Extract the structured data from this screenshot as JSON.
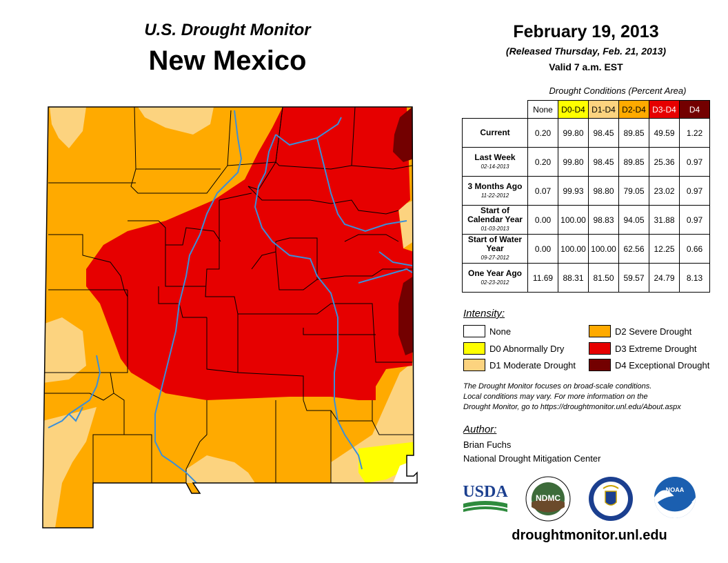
{
  "header": {
    "title_line1": "U.S. Drought Monitor",
    "title_line2": "New Mexico",
    "date": "February 19, 2013",
    "released": "(Released Thursday, Feb. 21, 2013)",
    "valid": "Valid 7 a.m. EST"
  },
  "table": {
    "caption": "Drought Conditions (Percent Area)",
    "columns": [
      {
        "label": "None",
        "color": "#ffffff",
        "text_color": "#000000"
      },
      {
        "label": "D0-D4",
        "color": "#ffff00",
        "text_color": "#000000"
      },
      {
        "label": "D1-D4",
        "color": "#fcd37f",
        "text_color": "#000000"
      },
      {
        "label": "D2-D4",
        "color": "#ffaa00",
        "text_color": "#000000"
      },
      {
        "label": "D3-D4",
        "color": "#e60000",
        "text_color": "#ffffff"
      },
      {
        "label": "D4",
        "color": "#730000",
        "text_color": "#ffffff"
      }
    ],
    "rows": [
      {
        "label": "Current",
        "date": "",
        "values": [
          "0.20",
          "99.80",
          "98.45",
          "89.85",
          "49.59",
          "1.22"
        ]
      },
      {
        "label": "Last Week",
        "date": "02-14-2013",
        "values": [
          "0.20",
          "99.80",
          "98.45",
          "89.85",
          "25.36",
          "0.97"
        ]
      },
      {
        "label": "3 Months Ago",
        "date": "11-22-2012",
        "values": [
          "0.07",
          "99.93",
          "98.80",
          "79.05",
          "23.02",
          "0.97"
        ]
      },
      {
        "label": "Start of Calendar Year",
        "date": "01-03-2013",
        "values": [
          "0.00",
          "100.00",
          "98.83",
          "94.05",
          "31.88",
          "0.97"
        ]
      },
      {
        "label": "Start of Water Year",
        "date": "09-27-2012",
        "values": [
          "0.00",
          "100.00",
          "100.00",
          "62.56",
          "12.25",
          "0.66"
        ]
      },
      {
        "label": "One Year Ago",
        "date": "02-23-2012",
        "values": [
          "11.69",
          "88.31",
          "81.50",
          "59.57",
          "24.79",
          "8.13"
        ]
      }
    ]
  },
  "legend": {
    "title": "Intensity:",
    "items": [
      {
        "label": "None",
        "color": "#ffffff"
      },
      {
        "label": "D0 Abnormally Dry",
        "color": "#ffff00"
      },
      {
        "label": "D1 Moderate Drought",
        "color": "#fcd37f"
      },
      {
        "label": "D2 Severe Drought",
        "color": "#ffaa00"
      },
      {
        "label": "D3 Extreme Drought",
        "color": "#e60000"
      },
      {
        "label": "D4 Exceptional Drought",
        "color": "#730000"
      }
    ]
  },
  "note": {
    "line1": "The Drought Monitor focuses on broad-scale conditions.",
    "line2": "Local conditions may vary. For more information on the",
    "line3": "Drought Monitor, go to https://droughtmonitor.unl.edu/About.aspx"
  },
  "author": {
    "title": "Author:",
    "name": "Brian Fuchs",
    "org": "National Drought Mitigation Center"
  },
  "logos": {
    "usda": "USDA",
    "ndmc": "NDMC",
    "noaa": "NOAA"
  },
  "url": "droughtmonitor.unl.edu",
  "colors": {
    "d0": "#ffff00",
    "d1": "#fcd37f",
    "d2": "#ffaa00",
    "d3": "#e60000",
    "d4": "#730000",
    "river": "#3a8fd9",
    "county_line": "#000000"
  }
}
